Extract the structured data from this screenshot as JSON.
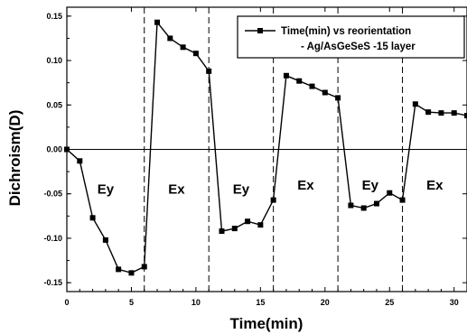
{
  "chart_data": {
    "type": "line",
    "xlabel": "Time(min)",
    "ylabel": "Dichroism(D)",
    "xlim": [
      0,
      31
    ],
    "ylim": [
      -0.16,
      0.16
    ],
    "xticks": [
      0,
      5,
      10,
      15,
      20,
      25,
      30
    ],
    "yticks": [
      -0.15,
      -0.1,
      -0.05,
      0.0,
      0.05,
      0.1,
      0.15
    ],
    "ytick_labels": [
      "-0.15",
      "-0.10",
      "-0.05",
      "0.00",
      "0.05",
      "0.10",
      "0.15"
    ],
    "xtick_labels": [
      "0",
      "5",
      "10",
      "15",
      "20",
      "25",
      "30"
    ],
    "zero_line": true,
    "grid": false,
    "legend_position": "top-right",
    "legend_lines": [
      "Time(min) vs reorientation",
      "- Ag/AsGeSeS -15 layer"
    ],
    "dividers": [
      6,
      11,
      16,
      21,
      26
    ],
    "regions": [
      {
        "label": "Ey",
        "x": 3,
        "y": -0.05
      },
      {
        "label": "Ex",
        "x": 8.5,
        "y": -0.05
      },
      {
        "label": "Ey",
        "x": 13.5,
        "y": -0.05
      },
      {
        "label": "Ex",
        "x": 18.5,
        "y": -0.045
      },
      {
        "label": "Ey",
        "x": 23.5,
        "y": -0.045
      },
      {
        "label": "Ex",
        "x": 28.5,
        "y": -0.045
      }
    ],
    "series": [
      {
        "name": "Time(min) vs reorientation - Ag/AsGeSeS -15 layer",
        "color": "#000000",
        "marker": "square",
        "x": [
          0,
          1,
          2,
          3,
          4,
          5,
          6,
          7,
          8,
          9,
          10,
          11,
          12,
          13,
          14,
          15,
          16,
          17,
          18,
          19,
          20,
          21,
          22,
          23,
          24,
          25,
          26,
          27,
          28,
          29,
          30,
          31
        ],
        "y": [
          0.0,
          -0.013,
          -0.077,
          -0.102,
          -0.135,
          -0.139,
          -0.132,
          0.143,
          0.125,
          0.115,
          0.108,
          0.088,
          -0.092,
          -0.089,
          -0.081,
          -0.085,
          -0.057,
          0.083,
          0.077,
          0.071,
          0.064,
          0.058,
          -0.063,
          -0.066,
          -0.061,
          -0.049,
          -0.057,
          0.051,
          0.042,
          0.041,
          0.041,
          0.038
        ]
      }
    ]
  }
}
